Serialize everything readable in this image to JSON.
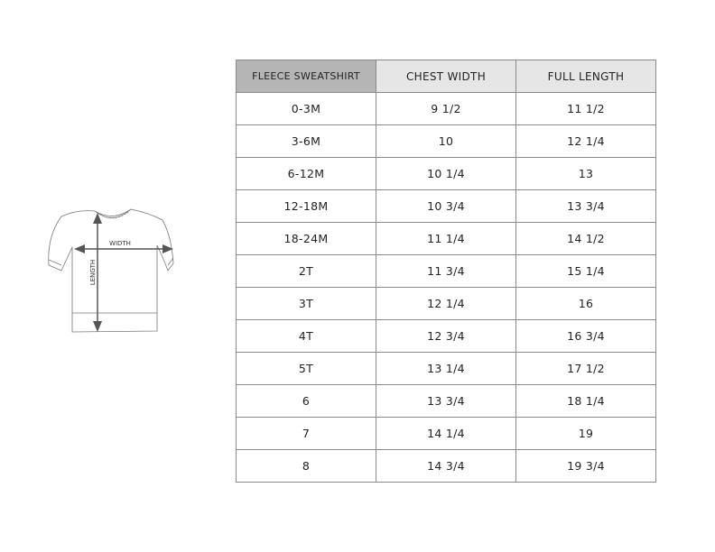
{
  "illustration": {
    "width_label": "WIDTH",
    "length_label": "LENGTH"
  },
  "table": {
    "headers": [
      "FLEECE SWEATSHIRT",
      "CHEST WIDTH",
      "FULL LENGTH"
    ],
    "header_colors": [
      "#b5b5b5",
      "#e6e6e6",
      "#e6e6e6"
    ],
    "rows": [
      [
        "0-3M",
        "9 1/2",
        "11 1/2"
      ],
      [
        "3-6M",
        "10",
        "12 1/4"
      ],
      [
        "6-12M",
        "10 1/4",
        "13"
      ],
      [
        "12-18M",
        "10 3/4",
        "13 3/4"
      ],
      [
        "18-24M",
        "11 1/4",
        "14 1/2"
      ],
      [
        "2T",
        "11 3/4",
        "15 1/4"
      ],
      [
        "3T",
        "12 1/4",
        "16"
      ],
      [
        "4T",
        "12 3/4",
        "16 3/4"
      ],
      [
        "5T",
        "13 1/4",
        "17 1/2"
      ],
      [
        "6",
        "13 3/4",
        "18 1/4"
      ],
      [
        "7",
        "14 1/4",
        "19"
      ],
      [
        "8",
        "14 3/4",
        "19 3/4"
      ]
    ]
  }
}
